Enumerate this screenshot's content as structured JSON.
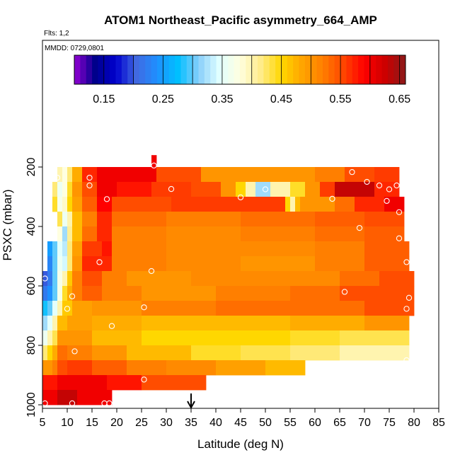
{
  "chart_data": {
    "type": "heatmap",
    "title": "ATOM1 Northeast_Pacific asymmetry_664_AMP",
    "annotations": {
      "flights": "Flts: 1,2",
      "dates": "MMDD: 0729,0801"
    },
    "xlabel": "Latitude (deg N)",
    "ylabel": "PSXC (mbar)",
    "xlim": [
      5,
      85
    ],
    "ylim": [
      1000,
      0
    ],
    "x_ticks": [
      5,
      10,
      15,
      20,
      25,
      30,
      35,
      40,
      45,
      50,
      55,
      60,
      65,
      70,
      75,
      80,
      85
    ],
    "y_ticks": [
      200,
      400,
      600,
      800,
      1000
    ],
    "colorbar": {
      "ticks": [
        0.15,
        0.25,
        0.35,
        0.45,
        0.55,
        0.65
      ],
      "tick_labels": [
        "0.15",
        "0.25",
        "0.35",
        "0.45",
        "0.55",
        "0.65"
      ],
      "range": [
        0.1,
        0.66
      ],
      "colors": [
        "#9400d3",
        "#00008b",
        "#0000cd",
        "#4169e1",
        "#1e90ff",
        "#00bfff",
        "#87cefa",
        "#e0ffff",
        "#ffffe0",
        "#ffec8b",
        "#ffd700",
        "#ffa500",
        "#ff7f00",
        "#ff4500",
        "#ff0000",
        "#cd0000",
        "#8b1a1a"
      ]
    },
    "marker": {
      "latitude": 35,
      "label": "arrow"
    },
    "bands": [
      {
        "p0": 160,
        "p1": 200,
        "segs": [
          [
            27,
            28,
            0.6
          ]
        ]
      },
      {
        "p0": 200,
        "p1": 250,
        "segs": [
          [
            8,
            9,
            0.4
          ],
          [
            9,
            10,
            0.38
          ],
          [
            10,
            11,
            0.42
          ],
          [
            11,
            13,
            0.48
          ],
          [
            13,
            16,
            0.57
          ],
          [
            16,
            22,
            0.6
          ],
          [
            22,
            28,
            0.6
          ],
          [
            28,
            37,
            0.55
          ],
          [
            37,
            46,
            0.5
          ],
          [
            46,
            60,
            0.5
          ],
          [
            60,
            66,
            0.52
          ],
          [
            66,
            72,
            0.55
          ],
          [
            72,
            77,
            0.56
          ]
        ]
      },
      {
        "p0": 250,
        "p1": 300,
        "segs": [
          [
            7,
            8,
            0.42
          ],
          [
            8,
            9,
            0.36
          ],
          [
            9,
            10,
            0.38
          ],
          [
            10,
            11,
            0.44
          ],
          [
            11,
            13,
            0.5
          ],
          [
            13,
            16,
            0.55
          ],
          [
            16,
            20,
            0.6
          ],
          [
            20,
            27,
            0.58
          ],
          [
            27,
            35,
            0.56
          ],
          [
            35,
            41,
            0.55
          ],
          [
            41,
            44,
            0.5
          ],
          [
            44,
            46,
            0.45
          ],
          [
            46,
            48,
            0.4
          ],
          [
            48,
            51,
            0.32
          ],
          [
            51,
            55,
            0.4
          ],
          [
            55,
            58,
            0.44
          ],
          [
            58,
            61,
            0.5
          ],
          [
            61,
            64,
            0.56
          ],
          [
            64,
            72,
            0.63
          ],
          [
            72,
            77,
            0.57
          ]
        ]
      },
      {
        "p0": 300,
        "p1": 350,
        "segs": [
          [
            7,
            8,
            0.44
          ],
          [
            8,
            9,
            0.37
          ],
          [
            9,
            10,
            0.39
          ],
          [
            10,
            11,
            0.45
          ],
          [
            11,
            13,
            0.49
          ],
          [
            13,
            16,
            0.54
          ],
          [
            16,
            19,
            0.59
          ],
          [
            19,
            31,
            0.55
          ],
          [
            31,
            40,
            0.56
          ],
          [
            40,
            54,
            0.56
          ],
          [
            54,
            55,
            0.45
          ],
          [
            55,
            56,
            0.4
          ],
          [
            56,
            57,
            0.47
          ],
          [
            57,
            64,
            0.5
          ],
          [
            64,
            68,
            0.53
          ],
          [
            68,
            74,
            0.57
          ],
          [
            74,
            78,
            0.6
          ]
        ]
      },
      {
        "p0": 350,
        "p1": 400,
        "segs": [
          [
            8,
            9,
            0.43
          ],
          [
            9,
            10,
            0.36
          ],
          [
            10,
            11,
            0.4
          ],
          [
            11,
            13,
            0.47
          ],
          [
            13,
            16,
            0.52
          ],
          [
            16,
            19,
            0.57
          ],
          [
            19,
            30,
            0.53
          ],
          [
            30,
            45,
            0.52
          ],
          [
            45,
            60,
            0.53
          ],
          [
            60,
            70,
            0.54
          ],
          [
            70,
            78,
            0.55
          ]
        ]
      },
      {
        "p0": 400,
        "p1": 450,
        "segs": [
          [
            8,
            9,
            0.38
          ],
          [
            9,
            10,
            0.32
          ],
          [
            10,
            11,
            0.41
          ],
          [
            11,
            13,
            0.47
          ],
          [
            13,
            16,
            0.53
          ],
          [
            16,
            19,
            0.57
          ],
          [
            19,
            30,
            0.52
          ],
          [
            30,
            45,
            0.51
          ],
          [
            45,
            60,
            0.52
          ],
          [
            60,
            70,
            0.53
          ],
          [
            70,
            78,
            0.54
          ]
        ]
      },
      {
        "p0": 450,
        "p1": 500,
        "segs": [
          [
            6,
            7,
            0.25
          ],
          [
            7,
            8,
            0.3
          ],
          [
            8,
            9,
            0.35
          ],
          [
            9,
            10,
            0.33
          ],
          [
            10,
            11,
            0.42
          ],
          [
            11,
            13,
            0.49
          ],
          [
            13,
            17,
            0.56
          ],
          [
            17,
            19,
            0.58
          ],
          [
            19,
            30,
            0.52
          ],
          [
            30,
            45,
            0.51
          ],
          [
            45,
            60,
            0.51
          ],
          [
            60,
            70,
            0.52
          ],
          [
            70,
            79,
            0.54
          ]
        ]
      },
      {
        "p0": 500,
        "p1": 550,
        "segs": [
          [
            6,
            7,
            0.23
          ],
          [
            7,
            8,
            0.3
          ],
          [
            8,
            9,
            0.36
          ],
          [
            9,
            10,
            0.34
          ],
          [
            10,
            11,
            0.42
          ],
          [
            11,
            13,
            0.5
          ],
          [
            13,
            17,
            0.57
          ],
          [
            17,
            19,
            0.57
          ],
          [
            19,
            30,
            0.52
          ],
          [
            30,
            45,
            0.51
          ],
          [
            45,
            60,
            0.5
          ],
          [
            60,
            70,
            0.52
          ],
          [
            70,
            79,
            0.54
          ]
        ]
      },
      {
        "p0": 550,
        "p1": 600,
        "segs": [
          [
            5,
            6,
            0.2
          ],
          [
            6,
            7,
            0.22
          ],
          [
            7,
            8,
            0.3
          ],
          [
            8,
            9,
            0.37
          ],
          [
            9,
            10,
            0.4
          ],
          [
            10,
            11,
            0.46
          ],
          [
            11,
            13,
            0.52
          ],
          [
            13,
            17,
            0.55
          ],
          [
            17,
            22,
            0.52
          ],
          [
            22,
            35,
            0.5
          ],
          [
            35,
            50,
            0.51
          ],
          [
            50,
            65,
            0.51
          ],
          [
            65,
            73,
            0.53
          ],
          [
            73,
            80,
            0.55
          ]
        ]
      },
      {
        "p0": 600,
        "p1": 650,
        "segs": [
          [
            5,
            6,
            0.22
          ],
          [
            6,
            7,
            0.24
          ],
          [
            7,
            8,
            0.3
          ],
          [
            8,
            9,
            0.37
          ],
          [
            9,
            10,
            0.44
          ],
          [
            10,
            11,
            0.48
          ],
          [
            11,
            13,
            0.52
          ],
          [
            13,
            17,
            0.54
          ],
          [
            17,
            25,
            0.52
          ],
          [
            25,
            40,
            0.5
          ],
          [
            40,
            55,
            0.52
          ],
          [
            55,
            65,
            0.53
          ],
          [
            65,
            80,
            0.55
          ]
        ]
      },
      {
        "p0": 650,
        "p1": 700,
        "segs": [
          [
            5,
            6,
            0.28
          ],
          [
            6,
            7,
            0.3
          ],
          [
            7,
            8,
            0.35
          ],
          [
            8,
            9,
            0.4
          ],
          [
            9,
            11,
            0.46
          ],
          [
            11,
            15,
            0.49
          ],
          [
            15,
            25,
            0.5
          ],
          [
            25,
            40,
            0.52
          ],
          [
            40,
            55,
            0.53
          ],
          [
            55,
            70,
            0.53
          ],
          [
            70,
            80,
            0.55
          ]
        ]
      },
      {
        "p0": 700,
        "p1": 750,
        "segs": [
          [
            5,
            6,
            0.32
          ],
          [
            6,
            7,
            0.35
          ],
          [
            7,
            8,
            0.4
          ],
          [
            8,
            10,
            0.47
          ],
          [
            10,
            15,
            0.49
          ],
          [
            15,
            25,
            0.48
          ],
          [
            25,
            40,
            0.47
          ],
          [
            40,
            55,
            0.47
          ],
          [
            55,
            70,
            0.48
          ],
          [
            70,
            79,
            0.5
          ]
        ]
      },
      {
        "p0": 750,
        "p1": 800,
        "segs": [
          [
            5,
            6,
            0.36
          ],
          [
            6,
            7,
            0.4
          ],
          [
            7,
            8,
            0.43
          ],
          [
            8,
            10,
            0.5
          ],
          [
            10,
            15,
            0.5
          ],
          [
            15,
            25,
            0.47
          ],
          [
            25,
            40,
            0.45
          ],
          [
            40,
            55,
            0.45
          ],
          [
            55,
            65,
            0.44
          ],
          [
            65,
            79,
            0.43
          ]
        ]
      },
      {
        "p0": 800,
        "p1": 850,
        "segs": [
          [
            5,
            6,
            0.42
          ],
          [
            6,
            7,
            0.45
          ],
          [
            7,
            8,
            0.48
          ],
          [
            8,
            10,
            0.53
          ],
          [
            10,
            15,
            0.52
          ],
          [
            15,
            22,
            0.5
          ],
          [
            22,
            35,
            0.47
          ],
          [
            35,
            45,
            0.44
          ],
          [
            45,
            55,
            0.43
          ],
          [
            55,
            65,
            0.42
          ],
          [
            65,
            79,
            0.4
          ]
        ]
      },
      {
        "p0": 850,
        "p1": 900,
        "segs": [
          [
            5,
            6,
            0.5
          ],
          [
            6,
            7,
            0.5
          ],
          [
            7,
            8,
            0.52
          ],
          [
            8,
            10,
            0.55
          ],
          [
            10,
            15,
            0.56
          ],
          [
            15,
            22,
            0.54
          ],
          [
            22,
            30,
            0.52
          ],
          [
            30,
            40,
            0.51
          ],
          [
            40,
            50,
            0.49
          ],
          [
            50,
            58,
            0.47
          ]
        ]
      },
      {
        "p0": 900,
        "p1": 950,
        "segs": [
          [
            5,
            8,
            0.58
          ],
          [
            8,
            12,
            0.6
          ],
          [
            12,
            18,
            0.6
          ],
          [
            18,
            25,
            0.58
          ],
          [
            25,
            38,
            0.55
          ]
        ]
      },
      {
        "p0": 950,
        "p1": 1000,
        "segs": [
          [
            5,
            8,
            0.6
          ],
          [
            8,
            12,
            0.63
          ],
          [
            12,
            19,
            0.6
          ]
        ]
      }
    ],
    "obs_points": [
      [
        27.5,
        195
      ],
      [
        8,
        236
      ],
      [
        14.5,
        236
      ],
      [
        67.5,
        217
      ],
      [
        70.5,
        250
      ],
      [
        14.5,
        262
      ],
      [
        73,
        262
      ],
      [
        75,
        275
      ],
      [
        76.5,
        262
      ],
      [
        31,
        274
      ],
      [
        45,
        302
      ],
      [
        50,
        275
      ],
      [
        63.5,
        307
      ],
      [
        74.5,
        314
      ],
      [
        18,
        308
      ],
      [
        77,
        352
      ],
      [
        69,
        405
      ],
      [
        77,
        440
      ],
      [
        16.5,
        520
      ],
      [
        27,
        550
      ],
      [
        5.5,
        575
      ],
      [
        78.5,
        520
      ],
      [
        66,
        620
      ],
      [
        11,
        635
      ],
      [
        79,
        640
      ],
      [
        10,
        677
      ],
      [
        25.5,
        672
      ],
      [
        78.5,
        677
      ],
      [
        19,
        735
      ],
      [
        11.5,
        820
      ],
      [
        25.5,
        915
      ],
      [
        78.5,
        850
      ],
      [
        5.5,
        995
      ],
      [
        11,
        995
      ],
      [
        17.5,
        995
      ],
      [
        18.5,
        995
      ]
    ]
  }
}
